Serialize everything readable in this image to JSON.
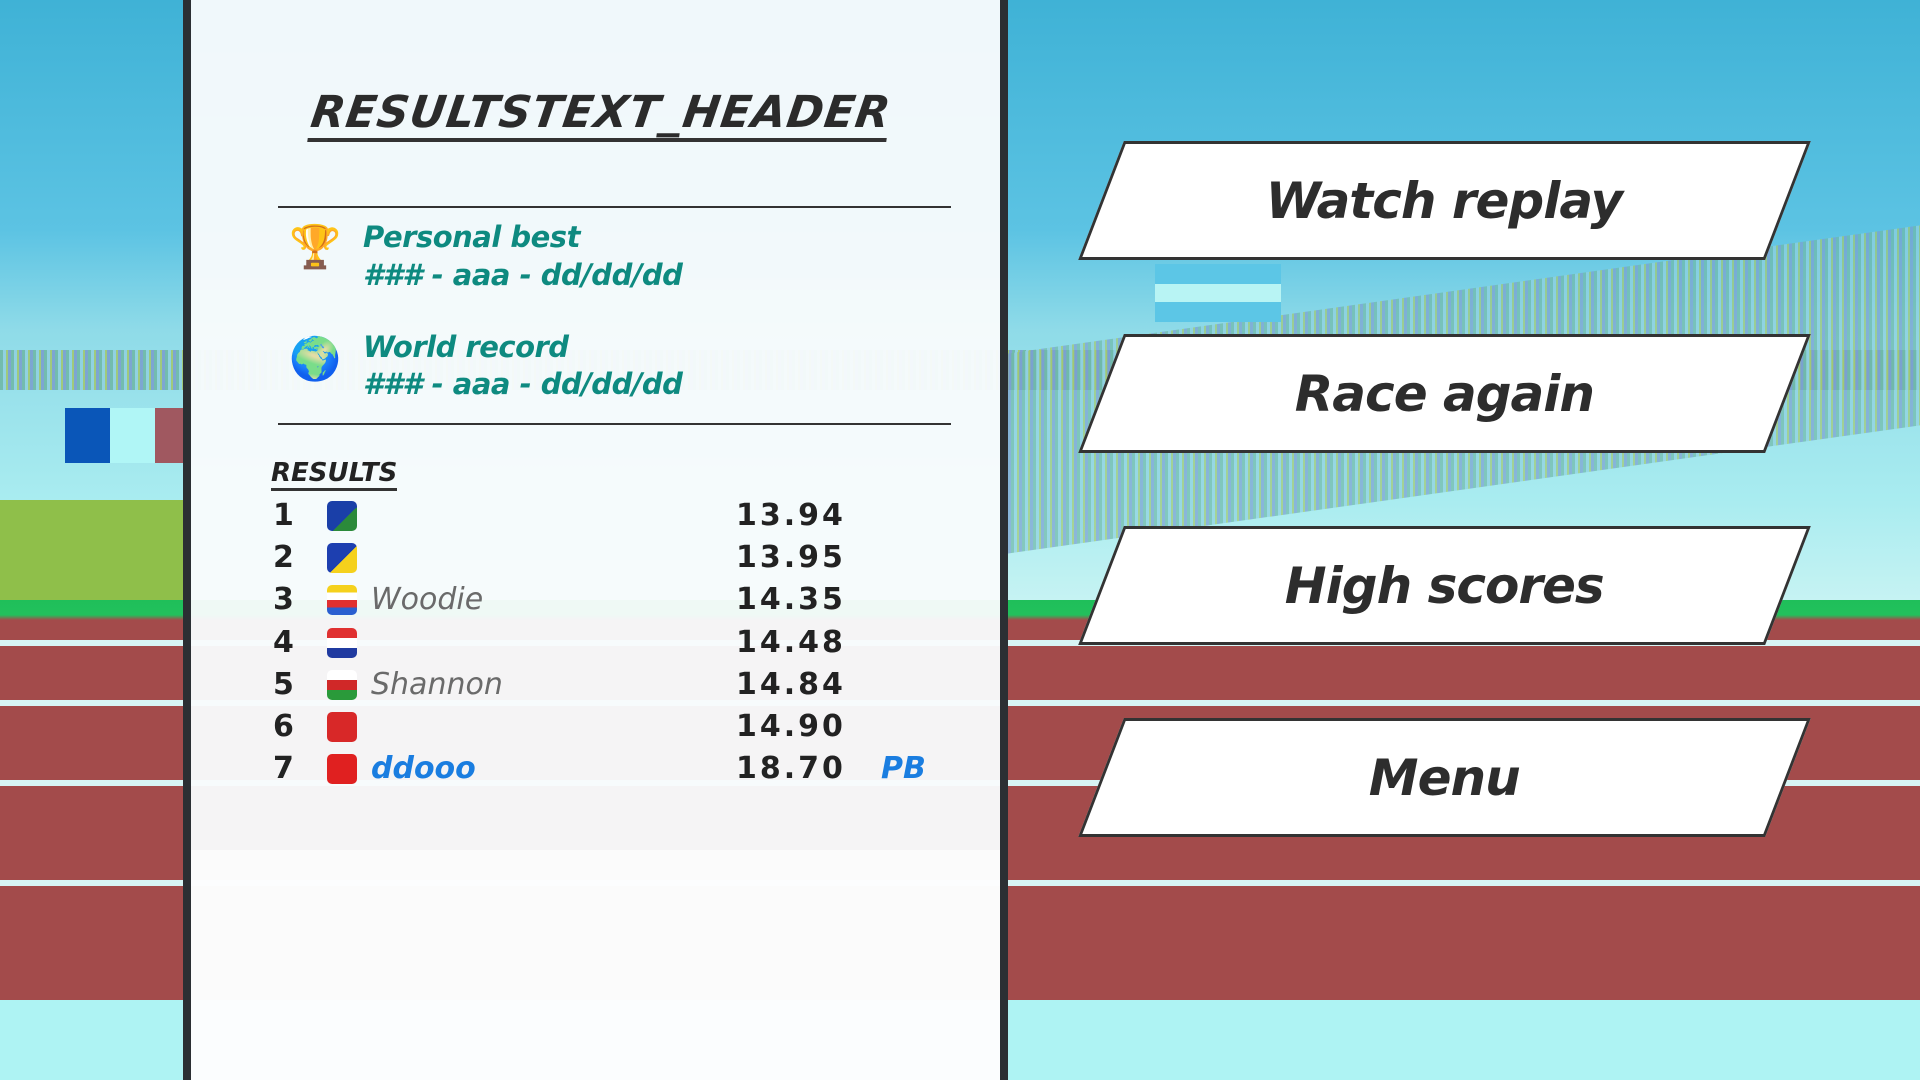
{
  "results_panel": {
    "header": "RESULTSTEXT_HEADER",
    "personal_best": {
      "label": "Personal best",
      "value": "### - aaa - dd/dd/dd",
      "icon": "trophy-icon"
    },
    "world_record": {
      "label": "World record",
      "value": "### - aaa - dd/dd/dd",
      "icon": "globe-icon"
    },
    "results_label": "RESULTS",
    "results": [
      {
        "rank": "1",
        "flag": "British Virgin Islands",
        "name": "",
        "time": "13.94",
        "badge": ""
      },
      {
        "rank": "2",
        "flag": "Bosnia and Herzegovina",
        "name": "",
        "time": "13.95",
        "badge": ""
      },
      {
        "rank": "3",
        "flag": "Comoros",
        "name": "Woodie",
        "time": "14.35",
        "badge": ""
      },
      {
        "rank": "4",
        "flag": "Netherlands",
        "name": "",
        "time": "14.48",
        "badge": ""
      },
      {
        "rank": "5",
        "flag": "Oman",
        "name": "Shannon",
        "time": "14.84",
        "badge": ""
      },
      {
        "rank": "6",
        "flag": "Hong Kong",
        "name": "",
        "time": "14.90",
        "badge": ""
      },
      {
        "rank": "7",
        "flag": "China",
        "name": "ddooo",
        "time": "18.70",
        "badge": "PB"
      }
    ]
  },
  "menu": {
    "watch_replay": "Watch replay",
    "race_again": "Race again",
    "high_scores": "High scores",
    "menu": "Menu"
  },
  "colors": {
    "record_text": "#0e8a80",
    "player_highlight": "#1a7de0",
    "panel_border": "#2b2f33",
    "track": "#a34b4b"
  }
}
